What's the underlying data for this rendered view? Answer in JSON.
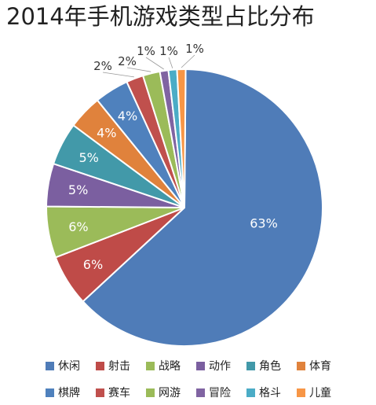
{
  "chart_data": {
    "type": "pie",
    "title": "2014年手机游戏类型占比分布",
    "legend_position": "bottom",
    "slices": [
      {
        "name": "休闲",
        "value": 63,
        "label": "63%",
        "color": "#4F7CB8"
      },
      {
        "name": "射击",
        "value": 6,
        "label": "6%",
        "color": "#BF4B48"
      },
      {
        "name": "战略",
        "value": 6,
        "label": "6%",
        "color": "#9BBB59"
      },
      {
        "name": "动作",
        "value": 5,
        "label": "5%",
        "color": "#7B5FA0"
      },
      {
        "name": "角色",
        "value": 5,
        "label": "5%",
        "color": "#4299A9"
      },
      {
        "name": "体育",
        "value": 4,
        "label": "4%",
        "color": "#E0823C"
      },
      {
        "name": "棋牌",
        "value": 4,
        "label": "4%",
        "color": "#4F81BD"
      },
      {
        "name": "赛车",
        "value": 2,
        "label": "2%",
        "color": "#C0504D"
      },
      {
        "name": "网游",
        "value": 2,
        "label": "2%",
        "color": "#9BBB59"
      },
      {
        "name": "冒险",
        "value": 1,
        "label": "1%",
        "color": "#8064A2"
      },
      {
        "name": "格斗",
        "value": 1,
        "label": "1%",
        "color": "#4BACC6"
      },
      {
        "name": "儿童",
        "value": 1,
        "label": "1%",
        "color": "#F79646"
      }
    ]
  }
}
